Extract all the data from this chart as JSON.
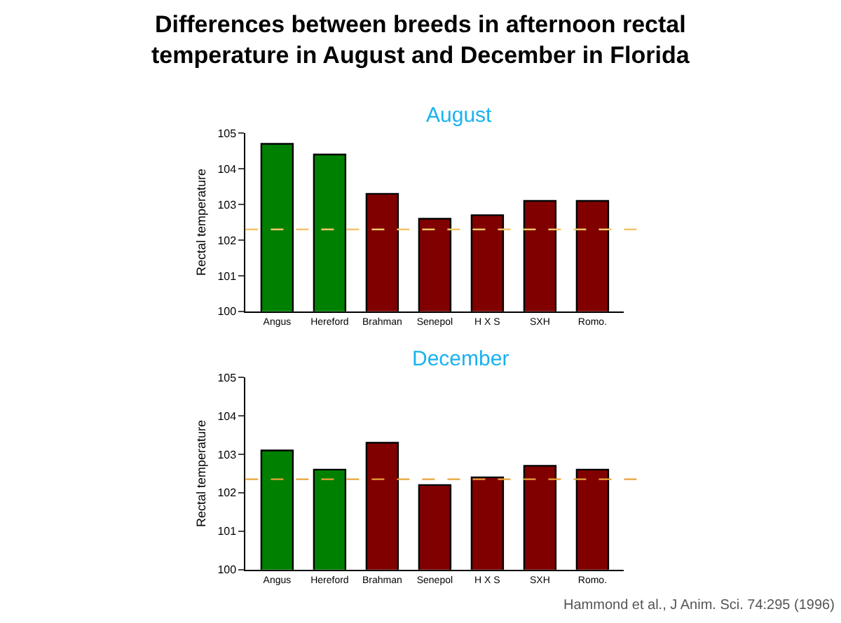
{
  "chart_data": [
    {
      "type": "bar",
      "title": "Differences between breeds in afternoon rectal temperature in August and December in Florida",
      "subtitle": "August",
      "ylabel": "Rectal temperature",
      "categories": [
        "Angus",
        "Hereford",
        "Brahman",
        "Senepol",
        "H X S",
        "SXH",
        "Romo."
      ],
      "values": [
        104.7,
        104.4,
        103.3,
        102.6,
        102.7,
        103.1,
        103.1
      ],
      "colors": [
        "#008000",
        "#008000",
        "#800000",
        "#800000",
        "#800000",
        "#800000",
        "#800000"
      ],
      "ylim": [
        100,
        105
      ],
      "yticks": [
        100,
        101,
        102,
        103,
        104,
        105
      ],
      "ref_lines": [
        {
          "axis": "y",
          "value": 102.3,
          "color": "#f4c56a",
          "line_style": "dashed"
        }
      ]
    },
    {
      "type": "bar",
      "title": "December",
      "ylabel": "Rectal temperature",
      "categories": [
        "Angus",
        "Hereford",
        "Brahman",
        "Senepol",
        "H X S",
        "SXH",
        "Romo."
      ],
      "values": [
        103.1,
        102.6,
        103.3,
        102.2,
        102.4,
        102.7,
        102.6
      ],
      "colors": [
        "#008000",
        "#008000",
        "#800000",
        "#800000",
        "#800000",
        "#800000",
        "#800000"
      ],
      "ylim": [
        100,
        105
      ],
      "yticks": [
        100,
        101,
        102,
        103,
        104,
        105
      ],
      "ref_lines": [
        {
          "axis": "y",
          "value": 102.35,
          "color": "#e9a33c",
          "line_style": "dashed"
        }
      ],
      "annotations": [
        "Hammond et al., J Anim. Sci. 74:295 (1996)"
      ]
    }
  ]
}
